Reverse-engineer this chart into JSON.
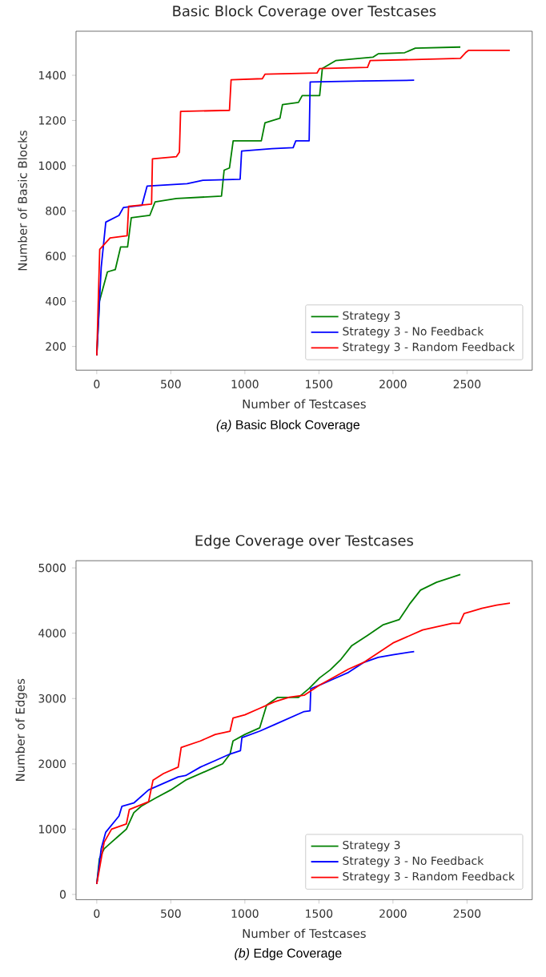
{
  "chart_data": [
    {
      "type": "line",
      "title": "Basic Block Coverage over Testcases",
      "xlabel": "Number of Testcases",
      "ylabel": "Number of Basic Blocks",
      "xlim": [
        -140,
        2940
      ],
      "ylim": [
        95,
        1595
      ],
      "xticks": [
        0,
        500,
        1000,
        1500,
        2000,
        2500
      ],
      "yticks": [
        200,
        400,
        600,
        800,
        1000,
        1200,
        1400
      ],
      "legend": "bottom right",
      "annotations": [
        "*(a)* Basic Block Coverage"
      ],
      "series": [
        {
          "name": "Strategy 3",
          "color": "#008000",
          "x": [
            0,
            18,
            72,
            125,
            161,
            208,
            233,
            358,
            394,
            538,
            842,
            860,
            896,
            921,
            1111,
            1136,
            1237,
            1254,
            1362,
            1387,
            1505,
            1523,
            1613,
            1864,
            1900,
            2079,
            2151,
            2455
          ],
          "values": [
            160,
            400,
            530,
            540,
            640,
            640,
            770,
            780,
            840,
            855,
            865,
            980,
            990,
            1110,
            1110,
            1190,
            1210,
            1270,
            1280,
            1310,
            1310,
            1430,
            1465,
            1480,
            1495,
            1500,
            1520,
            1525
          ]
        },
        {
          "name": "Strategy 3 - No Feedback",
          "color": "#0000ff",
          "x": [
            0,
            30,
            61,
            150,
            180,
            305,
            340,
            610,
            717,
            968,
            978,
            1183,
            1326,
            1344,
            1434,
            1441,
            1792,
            2143
          ],
          "values": [
            160,
            550,
            750,
            780,
            815,
            825,
            910,
            920,
            935,
            940,
            1065,
            1075,
            1080,
            1110,
            1110,
            1370,
            1375,
            1378
          ]
        },
        {
          "name": "Strategy 3 - Random Feedback",
          "color": "#ff0000",
          "x": [
            0,
            20,
            90,
            205,
            215,
            370,
            376,
            538,
            558,
            566,
            896,
            907,
            1118,
            1136,
            1487,
            1505,
            1828,
            1846,
            2455,
            2490,
            2509,
            2789
          ],
          "values": [
            160,
            630,
            680,
            690,
            820,
            830,
            1030,
            1040,
            1060,
            1240,
            1245,
            1380,
            1385,
            1405,
            1410,
            1430,
            1435,
            1465,
            1475,
            1500,
            1510,
            1510
          ]
        }
      ]
    },
    {
      "type": "line",
      "title": "Edge Coverage over Testcases",
      "xlabel": "Number of Testcases",
      "ylabel": "Number of Edges",
      "xlim": [
        -140,
        2940
      ],
      "ylim": [
        -80,
        5110
      ],
      "xticks": [
        0,
        500,
        1000,
        1500,
        2000,
        2500
      ],
      "yticks": [
        0,
        1000,
        2000,
        3000,
        4000,
        5000
      ],
      "legend": "bottom right",
      "annotations": [
        "*(b)* Edge Coverage"
      ],
      "series": [
        {
          "name": "Strategy 3",
          "color": "#008000",
          "x": [
            0,
            18,
            50,
            100,
            150,
            200,
            250,
            300,
            400,
            500,
            600,
            700,
            800,
            850,
            900,
            920,
            1000,
            1100,
            1147,
            1219,
            1362,
            1434,
            1505,
            1577,
            1649,
            1720,
            1828,
            1935,
            2043,
            2115,
            2186,
            2294,
            2455
          ],
          "values": [
            160,
            550,
            700,
            800,
            900,
            1000,
            1250,
            1350,
            1480,
            1600,
            1750,
            1850,
            1950,
            2000,
            2150,
            2350,
            2450,
            2550,
            2900,
            3016,
            3016,
            3155,
            3317,
            3440,
            3600,
            3805,
            3967,
            4130,
            4210,
            4455,
            4660,
            4780,
            4900
          ]
        },
        {
          "name": "Strategy 3 - No Feedback",
          "color": "#0000ff",
          "x": [
            0,
            30,
            60,
            150,
            170,
            250,
            350,
            450,
            550,
            600,
            700,
            800,
            900,
            970,
            980,
            1100,
            1200,
            1300,
            1400,
            1440,
            1445,
            1500,
            1600,
            1700,
            1800,
            1900,
            2000,
            2143
          ],
          "values": [
            160,
            700,
            950,
            1200,
            1350,
            1400,
            1600,
            1700,
            1800,
            1820,
            1950,
            2050,
            2150,
            2200,
            2400,
            2500,
            2600,
            2700,
            2800,
            2810,
            3150,
            3200,
            3300,
            3400,
            3550,
            3630,
            3670,
            3720
          ]
        },
        {
          "name": "Strategy 3 - Random Feedback",
          "color": "#ff0000",
          "x": [
            0,
            50,
            100,
            200,
            220,
            350,
            380,
            450,
            550,
            570,
            700,
            800,
            900,
            920,
            1000,
            1100,
            1200,
            1300,
            1400,
            1500,
            1700,
            1800,
            1900,
            2000,
            2100,
            2200,
            2400,
            2450,
            2480,
            2600,
            2700,
            2790
          ],
          "values": [
            160,
            800,
            1000,
            1080,
            1300,
            1420,
            1750,
            1850,
            1950,
            2250,
            2350,
            2450,
            2500,
            2700,
            2750,
            2850,
            2950,
            3020,
            3050,
            3200,
            3450,
            3550,
            3700,
            3850,
            3950,
            4050,
            4150,
            4150,
            4300,
            4380,
            4430,
            4460
          ]
        }
      ]
    }
  ]
}
